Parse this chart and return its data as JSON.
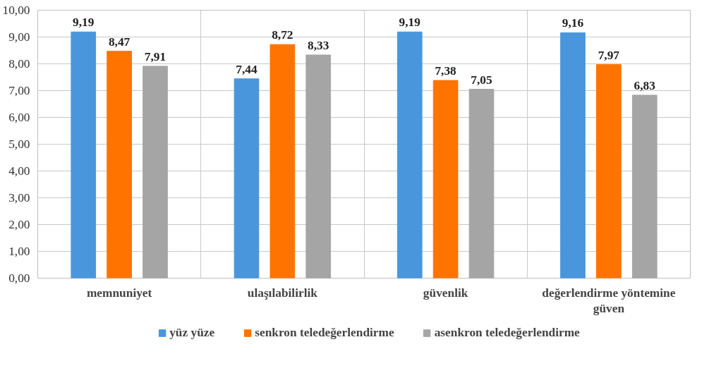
{
  "chart_data": {
    "type": "bar",
    "categories": [
      "memnuniyet",
      "ulaşılabilirlik",
      "güvenlik",
      "değerlendirme yöntemine güven"
    ],
    "series": [
      {
        "name": "yüz yüze",
        "color": "#4a96dc",
        "values": [
          9.19,
          7.44,
          9.19,
          9.16
        ],
        "value_labels": [
          "9,19",
          "7,44",
          "9,19",
          "9,16"
        ]
      },
      {
        "name": "senkron teledeğerlendirme",
        "color": "#ff7400",
        "values": [
          8.47,
          8.72,
          7.38,
          7.97
        ],
        "value_labels": [
          "8,47",
          "8,72",
          "7,38",
          "7,97"
        ]
      },
      {
        "name": "asenkron teledeğerlendirme",
        "color": "#a5a5a5",
        "values": [
          7.91,
          8.33,
          7.05,
          6.83
        ],
        "value_labels": [
          "7,91",
          "8,33",
          "7,05",
          "6,83"
        ]
      }
    ],
    "ylim": [
      0,
      10
    ],
    "yticks": [
      {
        "value": 0,
        "label": "0,00"
      },
      {
        "value": 1,
        "label": "1,00"
      },
      {
        "value": 2,
        "label": "2,00"
      },
      {
        "value": 3,
        "label": "3,00"
      },
      {
        "value": 4,
        "label": "4,00"
      },
      {
        "value": 5,
        "label": "5,00"
      },
      {
        "value": 6,
        "label": "6,00"
      },
      {
        "value": 7,
        "label": "7,00"
      },
      {
        "value": 8,
        "label": "8,00"
      },
      {
        "value": 9,
        "label": "9,00"
      },
      {
        "value": 10,
        "label": "10,00"
      }
    ],
    "grid": true,
    "legend": "bottom"
  }
}
